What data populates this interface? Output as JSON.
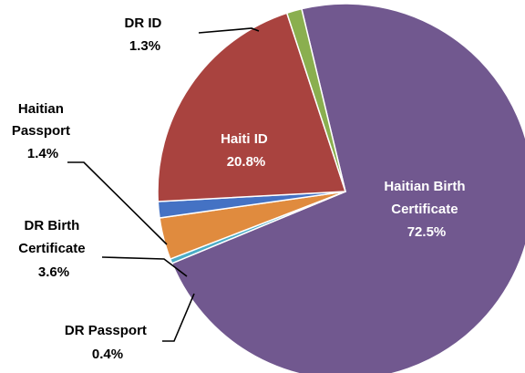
{
  "chart_data": {
    "type": "pie",
    "title": "",
    "start_angle_deg": -103.5,
    "slices": [
      {
        "name": "Haitian Birth Certificate",
        "value": 72.5,
        "label": "72.5%",
        "color": "#71588F"
      },
      {
        "name": "DR Passport",
        "value": 0.4,
        "label": "0.4%",
        "color": "#4BACC6"
      },
      {
        "name": "DR Birth Certificate",
        "value": 3.6,
        "label": "3.6%",
        "color": "#E08B3E"
      },
      {
        "name": "Haitian Passport",
        "value": 1.4,
        "label": "1.4%",
        "color": "#4472C4"
      },
      {
        "name": "Haiti ID",
        "value": 20.8,
        "label": "20.8%",
        "color": "#A9433F"
      },
      {
        "name": "DR ID",
        "value": 1.3,
        "label": "1.3%",
        "color": "#8AAF4F"
      }
    ],
    "legend": "none"
  }
}
